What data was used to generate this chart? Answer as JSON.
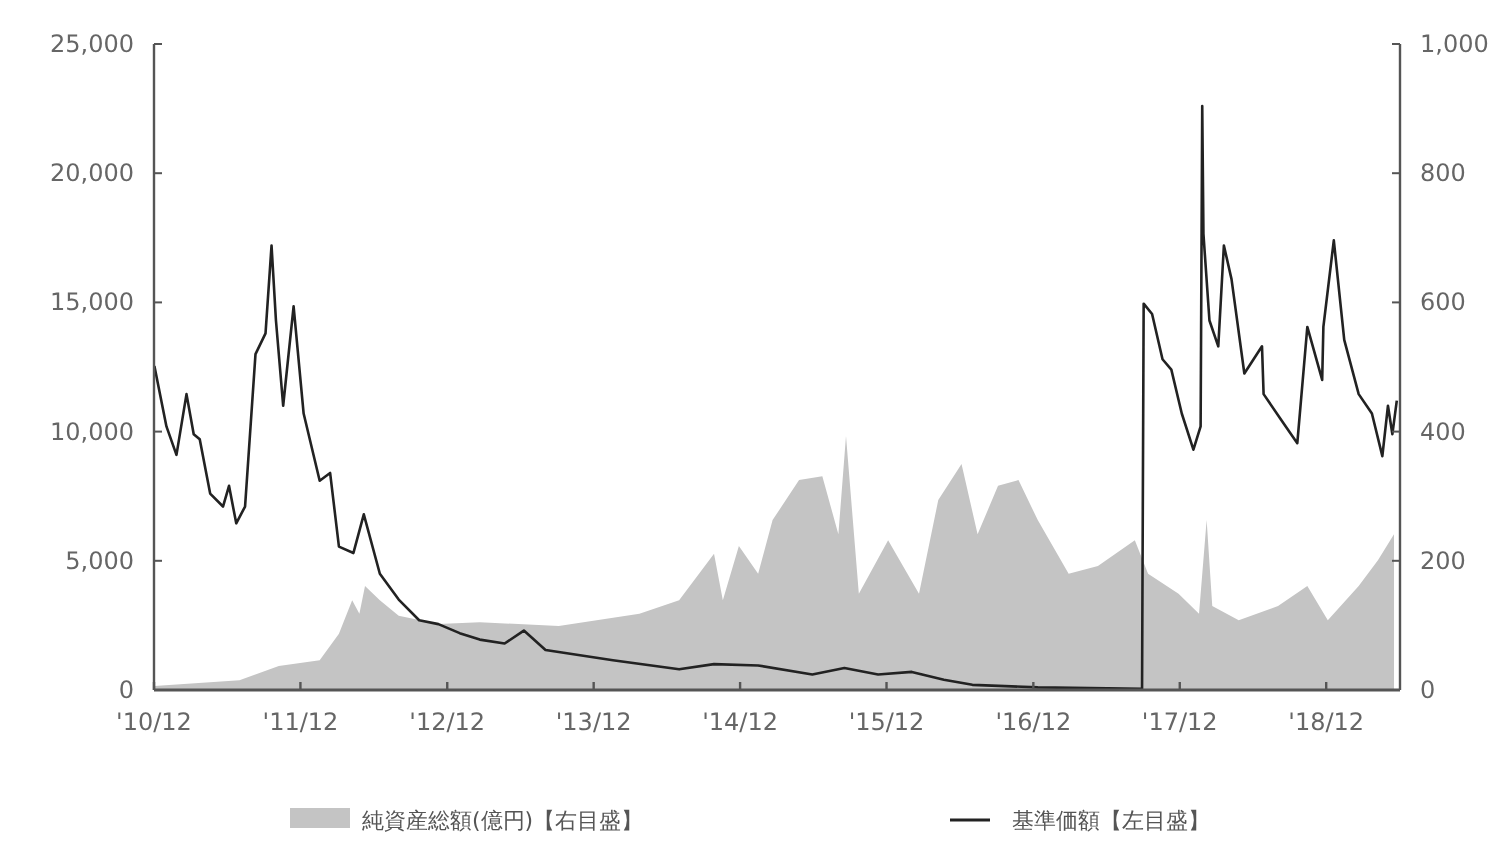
{
  "chart_data": {
    "type": "line",
    "legend": "bottom",
    "xlim": [
      "2010-12-01",
      "2019-06-03"
    ],
    "xticks": [
      {
        "value": "2010-12",
        "label": "'10/12"
      },
      {
        "value": "2011-12",
        "label": "'11/12"
      },
      {
        "value": "2012-12",
        "label": "'12/12"
      },
      {
        "value": "2013-12",
        "label": "'13/12"
      },
      {
        "value": "2014-12",
        "label": "'14/12"
      },
      {
        "value": "2015-12",
        "label": "'15/12"
      },
      {
        "value": "2016-12",
        "label": "'16/12"
      },
      {
        "value": "2017-12",
        "label": "'17/12"
      },
      {
        "value": "2018-12",
        "label": "'18/12"
      }
    ],
    "ylim": [
      0,
      25000
    ],
    "yticks": [
      0,
      {
        "value": 5000,
        "label": "5,000"
      },
      {
        "value": 10000,
        "label": "10,000"
      },
      {
        "value": 15000,
        "label": "15,000"
      },
      {
        "value": 20000,
        "label": "20,000"
      },
      {
        "value": 25000,
        "label": "25,000"
      }
    ],
    "y2lim": [
      0,
      1000
    ],
    "y2ticks": [
      0,
      200,
      400,
      600,
      800,
      {
        "value": 1000,
        "label": "1,000"
      }
    ],
    "series": [
      {
        "name": "純資産総額(億円)【右目盛】",
        "type": "area",
        "axis": "y2",
        "color": "#c4c4c4",
        "x": [
          "2010-12-02",
          "2011-07-02",
          "2011-10-08",
          "2012-01-18",
          "2012-03-06",
          "2012-04-08",
          "2012-04-26",
          "2012-05-10",
          "2012-06-16",
          "2012-08-02",
          "2012-11-09",
          "2013-02-20",
          "2013-09-05",
          "2014-03-25",
          "2014-07-02",
          "2014-09-27",
          "2014-10-19",
          "2014-11-28",
          "2015-01-15",
          "2015-02-20",
          "2015-04-27",
          "2015-06-24",
          "2015-08-03",
          "2015-08-22",
          "2015-09-23",
          "2015-12-05",
          "2016-01-11",
          "2016-02-20",
          "2016-04-08",
          "2016-06-05",
          "2016-07-15",
          "2016-09-04",
          "2016-10-25",
          "2016-12-12",
          "2017-02-27",
          "2017-05-11",
          "2017-08-11",
          "2017-09-13",
          "2017-11-28",
          "2018-01-18",
          "2018-02-06",
          "2018-02-20",
          "2018-04-27",
          "2018-08-03",
          "2018-10-15",
          "2018-12-05",
          "2019-02-20",
          "2019-04-09",
          "2019-05-19"
        ],
        "values": [
          6,
          15,
          37,
          46,
          87,
          139,
          118,
          161,
          139,
          115,
          102,
          105,
          99,
          118,
          139,
          211,
          139,
          223,
          180,
          263,
          325,
          331,
          241,
          393,
          149,
          232,
          192,
          149,
          294,
          350,
          241,
          316,
          325,
          263,
          180,
          192,
          232,
          180,
          149,
          118,
          263,
          130,
          108,
          130,
          161,
          108,
          161,
          201,
          241
        ]
      },
      {
        "name": "基準価額【左目盛】",
        "type": "line",
        "axis": "y",
        "color": "#222222",
        "x": [
          "2010-12-02",
          "2011-01-01",
          "2011-01-26",
          "2011-02-20",
          "2011-03-10",
          "2011-03-25",
          "2011-04-20",
          "2011-05-22",
          "2011-06-06",
          "2011-06-24",
          "2011-07-16",
          "2011-08-11",
          "2011-09-05",
          "2011-09-20",
          "2011-10-01",
          "2011-10-19",
          "2011-11-14",
          "2011-12-09",
          "2012-01-18",
          "2012-02-13",
          "2012-03-06",
          "2012-04-11",
          "2012-05-07",
          "2012-06-16",
          "2012-08-02",
          "2012-09-22",
          "2012-11-09",
          "2013-01-01",
          "2013-02-20",
          "2013-04-23",
          "2013-06-10",
          "2013-08-03",
          "2014-01-18",
          "2014-07-02",
          "2014-09-27",
          "2015-01-15",
          "2015-05-30",
          "2015-08-18",
          "2015-11-10",
          "2016-02-02",
          "2016-04-22",
          "2016-07-02",
          "2016-12-12",
          "2017-08-29",
          "2017-09-02",
          "2017-09-23",
          "2017-10-19",
          "2017-11-10",
          "2017-12-06",
          "2018-01-04",
          "2018-01-22",
          "2018-01-26",
          "2018-01-29",
          "2018-02-13",
          "2018-03-07",
          "2018-03-21",
          "2018-04-09",
          "2018-05-11",
          "2018-06-24",
          "2018-06-28",
          "2018-08-11",
          "2018-09-20",
          "2018-10-15",
          "2018-11-21",
          "2018-11-24",
          "2018-12-20",
          "2019-01-15",
          "2019-02-20",
          "2019-03-25",
          "2019-04-20",
          "2019-05-04",
          "2019-05-15",
          "2019-05-26"
        ],
        "values": [
          12540,
          10200,
          9100,
          11450,
          9900,
          9700,
          7600,
          7100,
          7900,
          6450,
          7100,
          13000,
          13800,
          17200,
          14300,
          11000,
          14850,
          10700,
          8100,
          8400,
          5550,
          5300,
          6800,
          4500,
          3500,
          2700,
          2550,
          2200,
          1950,
          1800,
          2300,
          1550,
          1150,
          800,
          1000,
          950,
          600,
          850,
          600,
          700,
          400,
          200,
          100,
          50,
          14950,
          14550,
          12800,
          12400,
          10700,
          9300,
          10200,
          22600,
          17650,
          14300,
          13300,
          17200,
          15900,
          12250,
          13300,
          11450,
          10450,
          9550,
          14050,
          12000,
          14050,
          17400,
          13550,
          11450,
          10700,
          9050,
          11000,
          9900,
          11200
        ]
      }
    ]
  }
}
